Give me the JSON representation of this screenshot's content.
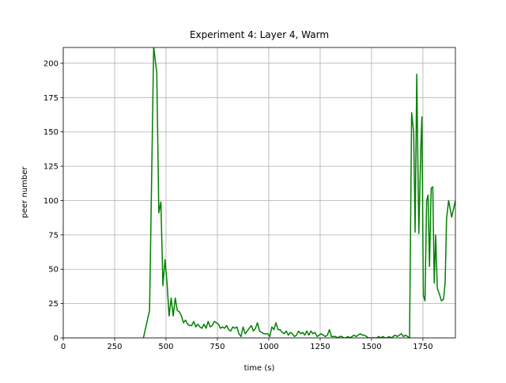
{
  "chart_data": {
    "type": "line",
    "title": "Experiment 4: Layer 4, Warm",
    "xlabel": "time (s)",
    "ylabel": "peer number",
    "x": [
      390,
      420,
      440,
      455,
      465,
      475,
      485,
      495,
      505,
      515,
      525,
      535,
      545,
      555,
      565,
      575,
      585,
      595,
      605,
      615,
      625,
      635,
      645,
      655,
      665,
      675,
      685,
      695,
      705,
      715,
      725,
      735,
      745,
      755,
      765,
      775,
      785,
      795,
      805,
      815,
      825,
      835,
      845,
      855,
      865,
      875,
      885,
      895,
      905,
      915,
      925,
      935,
      945,
      955,
      965,
      975,
      985,
      995,
      1005,
      1015,
      1025,
      1035,
      1045,
      1055,
      1065,
      1075,
      1085,
      1095,
      1105,
      1115,
      1125,
      1135,
      1145,
      1155,
      1165,
      1175,
      1185,
      1195,
      1205,
      1215,
      1225,
      1235,
      1245,
      1255,
      1265,
      1275,
      1285,
      1295,
      1305,
      1315,
      1325,
      1335,
      1345,
      1355,
      1365,
      1375,
      1385,
      1395,
      1405,
      1415,
      1425,
      1435,
      1445,
      1455,
      1465,
      1475,
      1485,
      1495,
      1505,
      1515,
      1525,
      1535,
      1545,
      1555,
      1565,
      1575,
      1585,
      1595,
      1605,
      1615,
      1625,
      1635,
      1645,
      1655,
      1665,
      1675,
      1685,
      1695,
      1705,
      1712,
      1720,
      1730,
      1740,
      1745,
      1752,
      1760,
      1768,
      1775,
      1782,
      1790,
      1798,
      1805,
      1812,
      1820,
      1830,
      1840,
      1850,
      1858,
      1865,
      1875,
      1890,
      1908
    ],
    "series": [
      {
        "name": "peers",
        "color": "green",
        "values": [
          0,
          20,
          212,
          193,
          91,
          99,
          38,
          57,
          40,
          16,
          29,
          16,
          29,
          20,
          19,
          16,
          11,
          13,
          10,
          9,
          9,
          12,
          8,
          10,
          8,
          7,
          10,
          7,
          12,
          8,
          9,
          12,
          11,
          10,
          7,
          8,
          7,
          9,
          6,
          5,
          8,
          7,
          8,
          3,
          1,
          8,
          3,
          5,
          7,
          9,
          5,
          7,
          11,
          5,
          4,
          3,
          3,
          3,
          1,
          8,
          6,
          11,
          6,
          6,
          4,
          3,
          5,
          2,
          4,
          3,
          1,
          2,
          5,
          3,
          4,
          2,
          5,
          2,
          5,
          3,
          4,
          1,
          2,
          3,
          2,
          1,
          2,
          6,
          1,
          1,
          1,
          0,
          1,
          1,
          0,
          0,
          1,
          0,
          1,
          2,
          1,
          2,
          3,
          2,
          2,
          1,
          0,
          0,
          0,
          0,
          0,
          1,
          0,
          1,
          0,
          0,
          1,
          0,
          1,
          2,
          1,
          2,
          3,
          1,
          2,
          1,
          0,
          164,
          150,
          77,
          192,
          76,
          140,
          161,
          31,
          27,
          100,
          104,
          52,
          109,
          110,
          40,
          75,
          36,
          32,
          27,
          28,
          40,
          87,
          100,
          88,
          100
        ]
      }
    ],
    "xlim": [
      0,
      1908
    ],
    "ylim": [
      0,
      211.5
    ],
    "xticks": [
      0,
      250,
      500,
      750,
      1000,
      1250,
      1500,
      1750
    ],
    "yticks": [
      0,
      25,
      50,
      75,
      100,
      125,
      150,
      175,
      200
    ],
    "grid": true
  }
}
